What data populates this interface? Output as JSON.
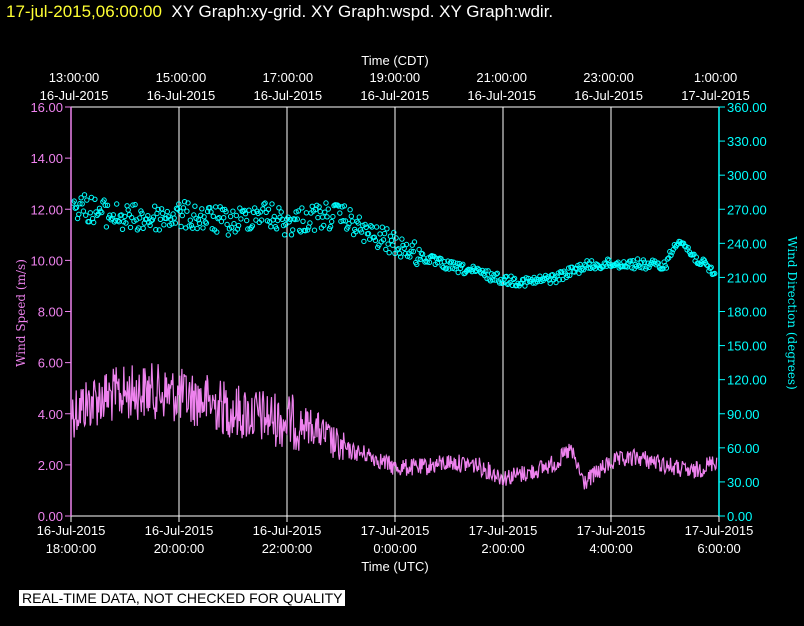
{
  "header": {
    "timestamp": "17-jul-2015,06:00:00",
    "graphs": "XY Graph:xy-grid.  XY Graph:wspd.  XY Graph:wdir."
  },
  "disclaimer": "REAL-TIME DATA, NOT CHECKED FOR QUALITY",
  "colors": {
    "background": "#000000",
    "wspd": "#ee82ee",
    "wdir": "#00ffff",
    "grid": "#ffffff",
    "timestamp": "#ffff33"
  },
  "chart_data": {
    "type": "line",
    "grid": true,
    "x_bottom": {
      "title": "Time (UTC)",
      "range": [
        "16-Jul-2015 18:00:00",
        "17-Jul-2015 06:00:00"
      ],
      "ticks": [
        {
          "date": "16-Jul-2015",
          "time": "18:00:00"
        },
        {
          "date": "16-Jul-2015",
          "time": "20:00:00"
        },
        {
          "date": "16-Jul-2015",
          "time": "22:00:00"
        },
        {
          "date": "17-Jul-2015",
          "time": "0:00:00"
        },
        {
          "date": "17-Jul-2015",
          "time": "2:00:00"
        },
        {
          "date": "17-Jul-2015",
          "time": "4:00:00"
        },
        {
          "date": "17-Jul-2015",
          "time": "6:00:00"
        }
      ]
    },
    "x_top": {
      "title": "Time (CDT)",
      "ticks": [
        {
          "time": "13:00:00",
          "date": "16-Jul-2015"
        },
        {
          "time": "15:00:00",
          "date": "16-Jul-2015"
        },
        {
          "time": "17:00:00",
          "date": "16-Jul-2015"
        },
        {
          "time": "19:00:00",
          "date": "16-Jul-2015"
        },
        {
          "time": "21:00:00",
          "date": "16-Jul-2015"
        },
        {
          "time": "23:00:00",
          "date": "16-Jul-2015"
        },
        {
          "time": "1:00:00",
          "date": "17-Jul-2015"
        }
      ]
    },
    "y_left": {
      "title": "Wind Speed (m/s)",
      "range": [
        0,
        16
      ],
      "ticks": [
        "0.00",
        "2.00",
        "4.00",
        "6.00",
        "8.00",
        "10.00",
        "12.00",
        "14.00",
        "16.00"
      ]
    },
    "y_right": {
      "title": "Wind Direction (degrees)",
      "range": [
        0,
        360
      ],
      "ticks": [
        "0.00",
        "30.00",
        "60.00",
        "90.00",
        "120.00",
        "150.00",
        "180.00",
        "210.00",
        "240.00",
        "270.00",
        "300.00",
        "330.00",
        "360.00"
      ]
    },
    "series": [
      {
        "key": "wspd",
        "axis": "left",
        "style": "line",
        "x": [
          "16-Jul-2015 18:00",
          "16-Jul-2015 18:30",
          "16-Jul-2015 19:00",
          "16-Jul-2015 19:30",
          "16-Jul-2015 20:00",
          "16-Jul-2015 20:30",
          "16-Jul-2015 21:00",
          "16-Jul-2015 21:30",
          "16-Jul-2015 22:00",
          "16-Jul-2015 22:30",
          "16-Jul-2015 23:00",
          "16-Jul-2015 23:30",
          "17-Jul-2015 00:00",
          "17-Jul-2015 00:30",
          "17-Jul-2015 01:00",
          "17-Jul-2015 01:30",
          "17-Jul-2015 02:00",
          "17-Jul-2015 02:30",
          "17-Jul-2015 03:00",
          "17-Jul-2015 03:15",
          "17-Jul-2015 03:30",
          "17-Jul-2015 04:00",
          "17-Jul-2015 04:30",
          "17-Jul-2015 05:00",
          "17-Jul-2015 05:30",
          "17-Jul-2015 06:00"
        ],
        "y": [
          4.1,
          4.6,
          4.8,
          4.9,
          4.7,
          4.5,
          4.1,
          3.9,
          3.7,
          3.5,
          2.6,
          2.4,
          1.9,
          1.9,
          2.1,
          2.0,
          1.5,
          1.7,
          2.1,
          2.6,
          1.3,
          2.1,
          2.3,
          2.0,
          1.7,
          2.2
        ]
      },
      {
        "key": "wdir",
        "axis": "right",
        "style": "circles",
        "x": [
          "16-Jul-2015 18:00",
          "16-Jul-2015 18:30",
          "16-Jul-2015 19:00",
          "16-Jul-2015 19:30",
          "16-Jul-2015 20:00",
          "16-Jul-2015 20:30",
          "16-Jul-2015 21:00",
          "16-Jul-2015 21:30",
          "16-Jul-2015 22:00",
          "16-Jul-2015 22:30",
          "16-Jul-2015 23:00",
          "16-Jul-2015 23:30",
          "17-Jul-2015 00:00",
          "17-Jul-2015 00:30",
          "17-Jul-2015 01:00",
          "17-Jul-2015 01:30",
          "17-Jul-2015 02:00",
          "17-Jul-2015 02:30",
          "17-Jul-2015 03:00",
          "17-Jul-2015 03:30",
          "17-Jul-2015 04:00",
          "17-Jul-2015 04:30",
          "17-Jul-2015 05:00",
          "17-Jul-2015 05:15",
          "17-Jul-2015 05:30",
          "17-Jul-2015 06:00"
        ],
        "y": [
          275,
          268,
          262,
          262,
          265,
          262,
          258,
          268,
          258,
          263,
          265,
          248,
          240,
          228,
          220,
          215,
          208,
          206,
          210,
          220,
          222,
          222,
          220,
          245,
          230,
          210
        ]
      }
    ]
  }
}
